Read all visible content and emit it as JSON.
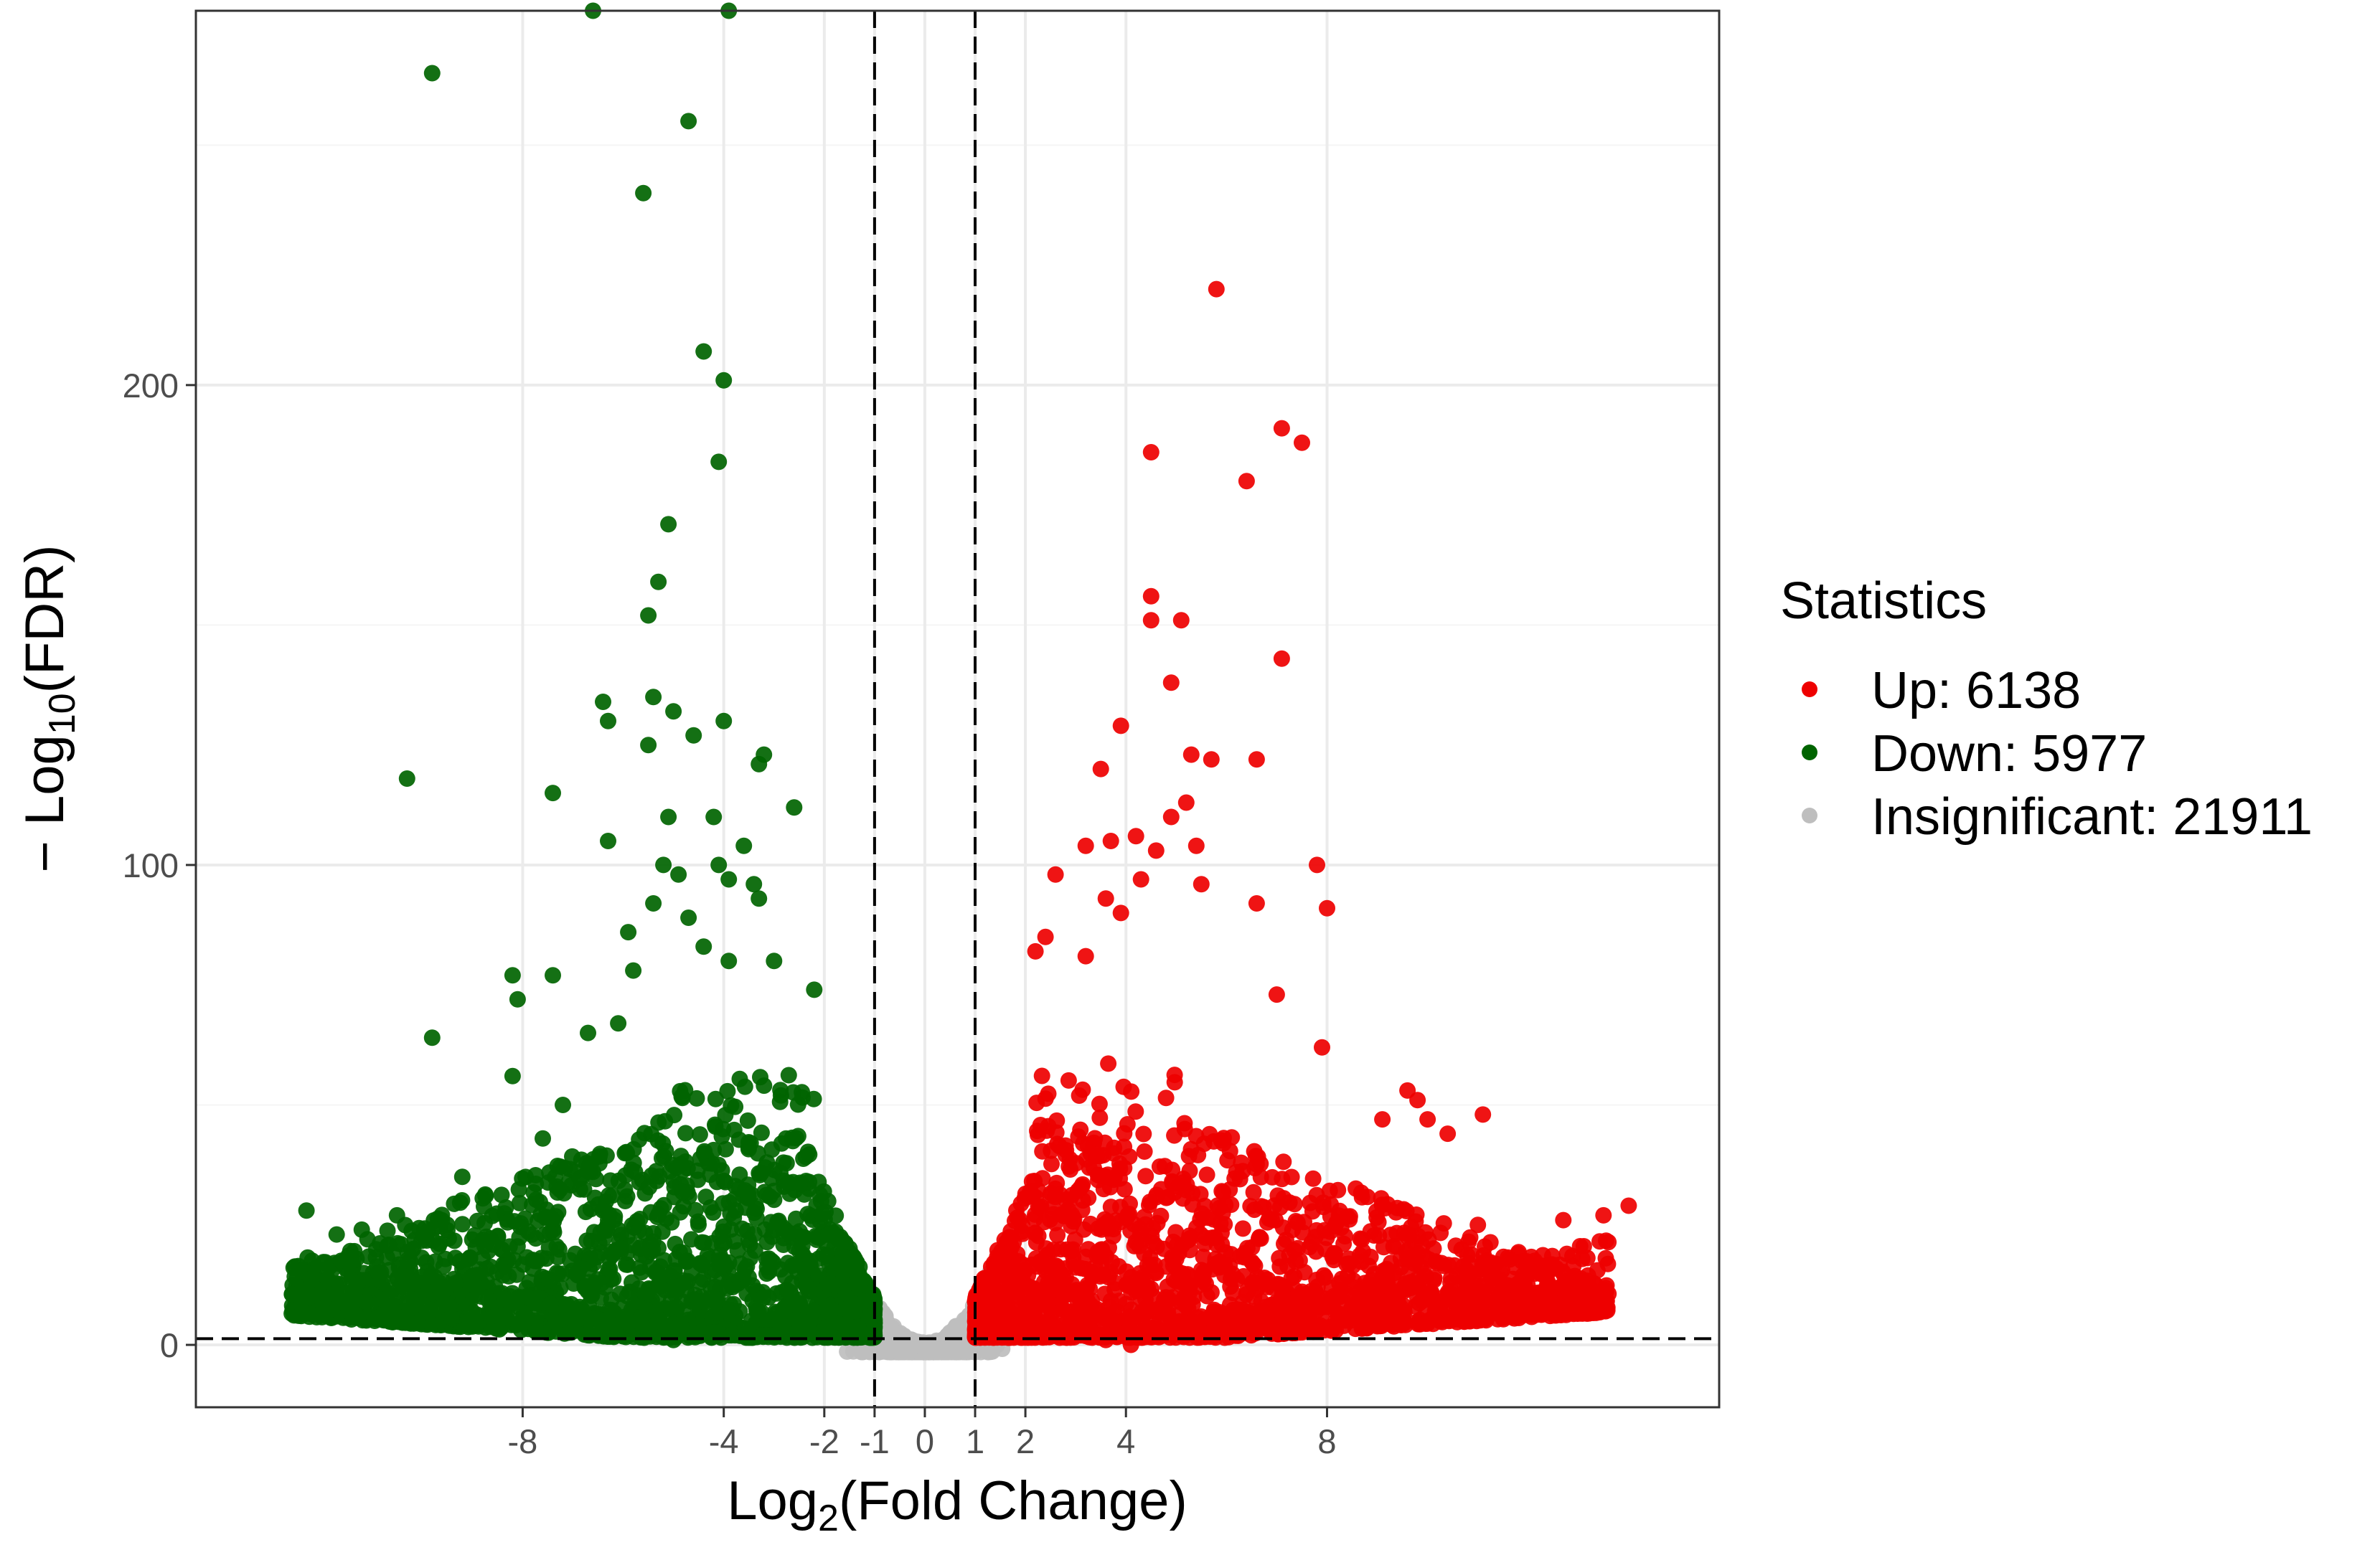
{
  "colors": {
    "up": "#ee0000",
    "down": "#006400",
    "insignificant": "#bebebe",
    "grid_major": "#ebebeb",
    "grid_minor": "#f5f5f5",
    "panel_border": "#333333",
    "threshold_line": "#000000",
    "tick_text": "#4d4d4d"
  },
  "chart_data": {
    "type": "scatter",
    "title": "",
    "xlabel": {
      "prefix": "Log",
      "sub": "2",
      "suffix": "(Fold Change)"
    },
    "ylabel": {
      "prefix": "− Log",
      "sub": "10",
      "suffix": "(FDR)"
    },
    "xlim": [
      -14.5,
      15.8
    ],
    "ylim": [
      -13,
      278
    ],
    "x_ticks": [
      -8,
      -4,
      -2,
      -1,
      0,
      1,
      2,
      4,
      8
    ],
    "x_tick_labels": [
      "-8",
      "-4",
      "-2",
      "-1",
      "0",
      "1",
      "2",
      "4",
      "8"
    ],
    "y_ticks": [
      0,
      100,
      200
    ],
    "y_tick_labels": [
      "0",
      "100",
      "200"
    ],
    "y_minor_ticks": [
      50,
      150,
      250
    ],
    "grid": true,
    "threshold_lines": {
      "vertical": [
        -1,
        1
      ],
      "horizontal": 1.3,
      "style": "dashed"
    },
    "legend": {
      "title": "Statistics",
      "position": "right",
      "entries": [
        {
          "key": "up",
          "label": "Up: 6138",
          "count": 6138
        },
        {
          "key": "down",
          "label": "Down: 5977",
          "count": 5977
        },
        {
          "key": "insignificant",
          "label": "Insignificant: 21911",
          "count": 21911
        }
      ]
    },
    "series": [
      {
        "key": "down",
        "name": "Down: 5977",
        "highlighted_points": [
          [
            -6.6,
            278
          ],
          [
            -3.9,
            278
          ],
          [
            -9.8,
            265
          ],
          [
            -4.7,
            255
          ],
          [
            -5.6,
            240
          ],
          [
            -4.4,
            207
          ],
          [
            -4.0,
            201
          ],
          [
            -4.1,
            184
          ],
          [
            -5.1,
            171
          ],
          [
            -5.3,
            159
          ],
          [
            -5.5,
            152
          ],
          [
            -10.3,
            118
          ],
          [
            -6.4,
            134
          ],
          [
            -6.3,
            130
          ],
          [
            -5.4,
            135
          ],
          [
            -5.0,
            132
          ],
          [
            -5.5,
            125
          ],
          [
            -4.6,
            127
          ],
          [
            -4.0,
            130
          ],
          [
            -3.2,
            123
          ],
          [
            -3.3,
            121
          ],
          [
            -2.6,
            112
          ],
          [
            -7.4,
            115
          ],
          [
            -6.3,
            105
          ],
          [
            -5.1,
            110
          ],
          [
            -4.2,
            110
          ],
          [
            -3.6,
            104
          ],
          [
            -5.2,
            100
          ],
          [
            -4.9,
            98
          ],
          [
            -4.1,
            100
          ],
          [
            -3.9,
            97
          ],
          [
            -3.4,
            96
          ],
          [
            -5.9,
            86
          ],
          [
            -5.4,
            92
          ],
          [
            -4.7,
            89
          ],
          [
            -3.3,
            93
          ],
          [
            -8.2,
            77
          ],
          [
            -7.4,
            77
          ],
          [
            -5.8,
            78
          ],
          [
            -4.4,
            83
          ],
          [
            -3.9,
            80
          ],
          [
            -3.0,
            80
          ],
          [
            -2.2,
            74
          ],
          [
            -9.8,
            64
          ],
          [
            -8.1,
            72
          ],
          [
            -6.7,
            65
          ],
          [
            -6.1,
            67
          ],
          [
            -7.2,
            50
          ],
          [
            -8.2,
            56
          ],
          [
            -7.6,
            43
          ],
          [
            -12.3,
            28
          ],
          [
            -11.7,
            23
          ],
          [
            -11.2,
            24
          ],
          [
            -10.5,
            27
          ],
          [
            -9.2,
            35
          ],
          [
            -6.7,
            2
          ],
          [
            -5.0,
            1
          ]
        ],
        "band": {
          "x_min": -12.6,
          "x_max": -1,
          "y_min": 1.5,
          "y_max": 60,
          "n": 1700
        }
      },
      {
        "key": "up",
        "name": "Up: 6138",
        "highlighted_points": [
          [
            5.8,
            220
          ],
          [
            4.5,
            186
          ],
          [
            7.1,
            191
          ],
          [
            7.5,
            188
          ],
          [
            6.4,
            180
          ],
          [
            4.5,
            156
          ],
          [
            4.5,
            151
          ],
          [
            5.1,
            151
          ],
          [
            7.1,
            143
          ],
          [
            4.9,
            138
          ],
          [
            3.9,
            129
          ],
          [
            3.5,
            120
          ],
          [
            5.3,
            123
          ],
          [
            5.7,
            122
          ],
          [
            6.6,
            122
          ],
          [
            5.2,
            113
          ],
          [
            4.9,
            110
          ],
          [
            3.2,
            104
          ],
          [
            3.7,
            105
          ],
          [
            4.2,
            106
          ],
          [
            4.6,
            103
          ],
          [
            5.4,
            104
          ],
          [
            2.6,
            98
          ],
          [
            4.3,
            97
          ],
          [
            5.5,
            96
          ],
          [
            7.8,
            100
          ],
          [
            8.0,
            91
          ],
          [
            6.6,
            92
          ],
          [
            3.6,
            93
          ],
          [
            3.9,
            90
          ],
          [
            2.4,
            85
          ],
          [
            2.2,
            82
          ],
          [
            3.2,
            81
          ],
          [
            7.0,
            73
          ],
          [
            7.9,
            62
          ],
          [
            9.6,
            53
          ],
          [
            9.8,
            51
          ],
          [
            10.4,
            44
          ],
          [
            11.1,
            48
          ],
          [
            9.1,
            47
          ],
          [
            10.0,
            47
          ],
          [
            14.0,
            29
          ],
          [
            13.5,
            27
          ],
          [
            12.7,
            26
          ],
          [
            11.0,
            25
          ],
          [
            7.6,
            6
          ],
          [
            4.1,
            0
          ],
          [
            3.6,
            1
          ]
        ],
        "band": {
          "x_min": 1,
          "x_max": 13.6,
          "y_min": 1.5,
          "y_max": 62,
          "n": 1800
        }
      },
      {
        "key": "insignificant",
        "name": "Insignificant: 21911",
        "band": {
          "x_min": -4.3,
          "x_max": 4.1,
          "y_min": -1.5,
          "y_max": 22,
          "n": 900
        }
      }
    ]
  }
}
